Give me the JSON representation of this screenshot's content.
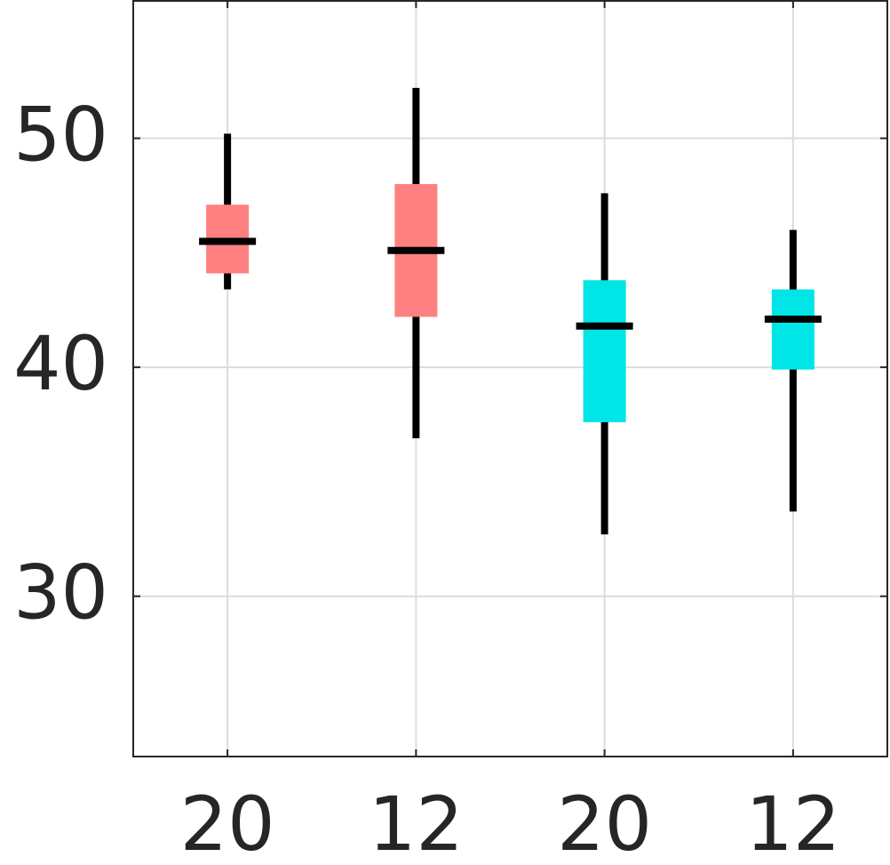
{
  "chart_data": {
    "type": "box",
    "categories": [
      "20",
      "12",
      "20",
      "12"
    ],
    "colors": [
      "#ff8080",
      "#ff8080",
      "#00e5e5",
      "#00e5e5"
    ],
    "min": [
      43.4,
      36.9,
      32.7,
      33.7
    ],
    "q1": [
      44.1,
      42.2,
      37.6,
      39.9
    ],
    "median": [
      45.5,
      45.1,
      41.8,
      42.1
    ],
    "q3": [
      47.1,
      48.0,
      43.8,
      43.4
    ],
    "max": [
      50.2,
      52.2,
      47.6,
      46.0
    ],
    "ylim": [
      23,
      56
    ],
    "yticks": [
      30,
      40,
      50
    ],
    "grid": true
  }
}
